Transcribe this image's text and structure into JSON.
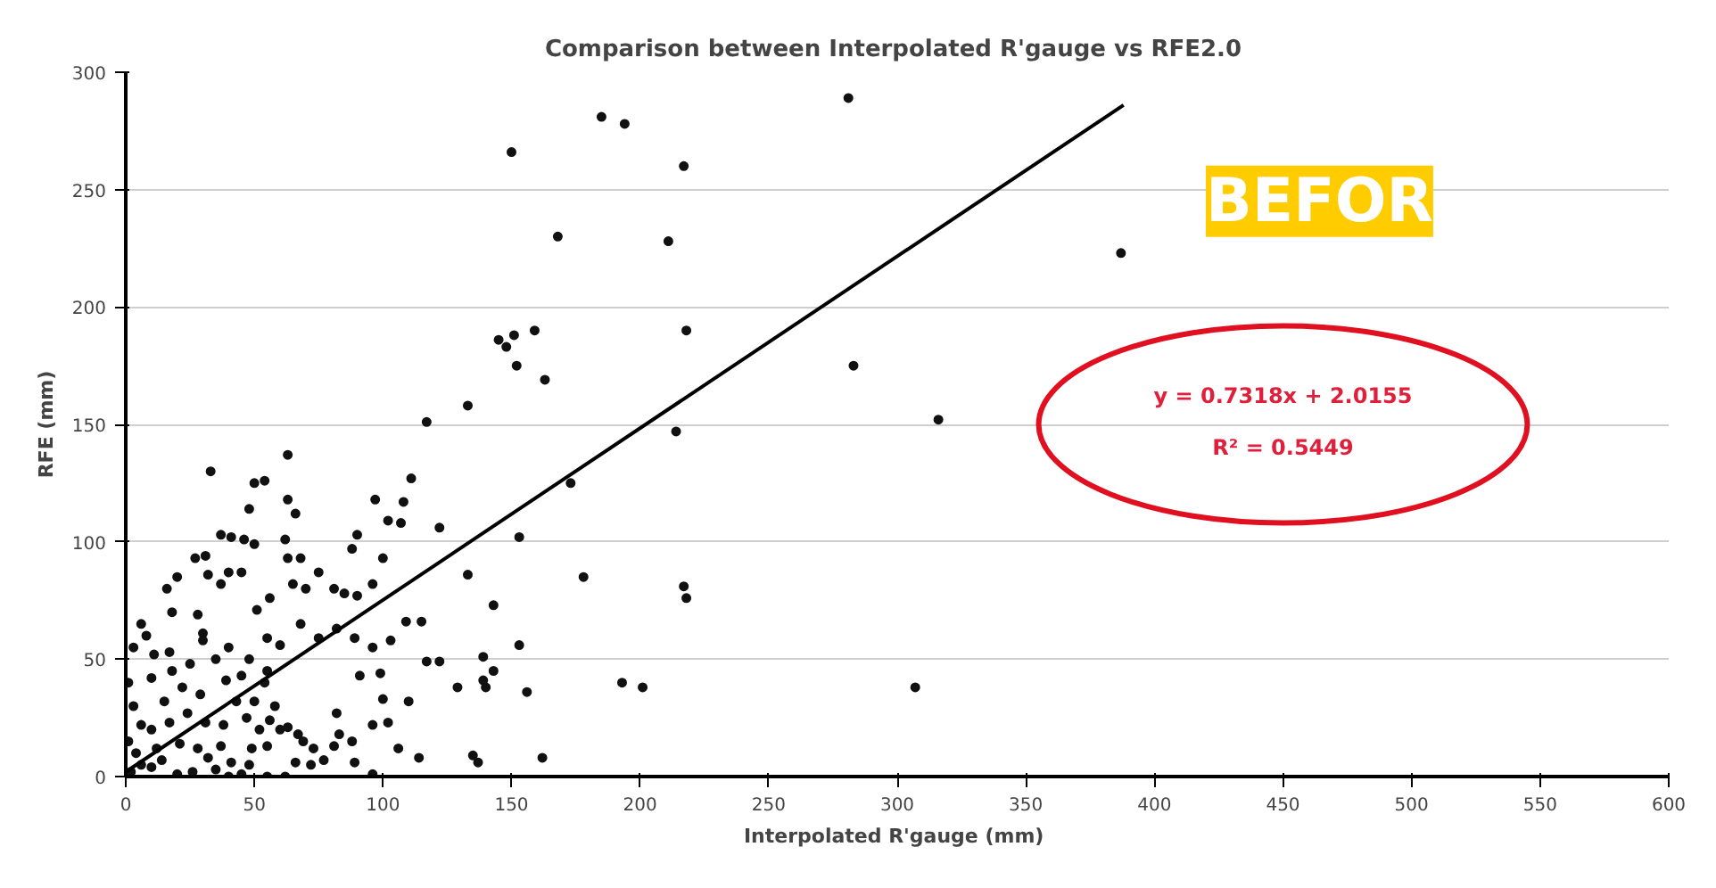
{
  "chart_data": {
    "type": "scatter",
    "title": "Comparison between Interpolated R'gauge  vs RFE2.0",
    "xlabel": "Interpolated  R'gauge (mm)",
    "ylabel": "RFE (mm)",
    "xlim": [
      0,
      600
    ],
    "ylim": [
      0,
      300
    ],
    "xticks": [
      0,
      50,
      100,
      150,
      200,
      250,
      300,
      350,
      400,
      450,
      500,
      550,
      600
    ],
    "yticks": [
      0,
      50,
      100,
      150,
      200,
      250,
      300
    ],
    "grid": "y",
    "marker": "circle",
    "annotations": [
      "BEFOR",
      "y = 0.7318x + 2.0155",
      "R² = 0.5449"
    ],
    "series": [
      {
        "color": "#111111",
        "x": [
          281,
          387,
          283,
          316,
          307,
          150,
          185,
          194,
          217,
          168,
          211,
          145,
          148,
          151,
          159,
          152,
          163,
          218,
          133,
          117,
          214,
          153,
          133,
          178,
          217,
          218,
          143,
          153,
          139,
          143,
          139,
          140,
          129,
          156,
          193,
          201,
          135,
          137,
          162,
          173,
          63,
          33,
          50,
          54,
          63,
          48,
          66,
          111,
          97,
          108,
          102,
          107,
          122,
          37,
          41,
          46,
          50,
          62,
          90,
          88,
          100,
          27,
          31,
          20,
          16,
          32,
          37,
          40,
          45,
          63,
          68,
          65,
          70,
          75,
          81,
          85,
          90,
          96,
          109,
          115,
          6,
          18,
          28,
          30,
          51,
          56,
          55,
          60,
          68,
          75,
          82,
          89,
          11,
          17,
          96,
          103,
          91,
          99,
          117,
          122,
          110,
          100,
          102,
          114,
          106,
          96,
          82,
          83,
          88,
          81,
          63,
          67,
          69,
          73,
          55,
          56,
          66,
          72,
          77,
          89,
          96,
          1,
          3,
          6,
          1,
          4,
          6,
          2,
          10,
          12,
          10,
          17,
          15,
          22,
          29,
          24,
          31,
          21,
          28,
          37,
          41,
          35,
          26,
          20,
          45,
          49,
          47,
          43,
          39,
          45,
          54,
          50,
          10,
          35,
          40,
          25,
          48,
          55,
          58,
          60,
          8,
          3,
          18,
          30,
          52,
          38,
          14,
          32,
          48,
          40,
          55,
          62
        ],
        "values": [
          289,
          223,
          175,
          152,
          38,
          266,
          281,
          278,
          260,
          230,
          228,
          186,
          183,
          188,
          190,
          175,
          169,
          190,
          158,
          151,
          147,
          102,
          86,
          85,
          81,
          76,
          73,
          56,
          51,
          45,
          41,
          38,
          38,
          36,
          40,
          38,
          9,
          6,
          8,
          125,
          137,
          130,
          125,
          126,
          118,
          114,
          112,
          127,
          118,
          117,
          109,
          108,
          106,
          103,
          102,
          101,
          99,
          101,
          103,
          97,
          93,
          93,
          94,
          85,
          80,
          86,
          82,
          87,
          87,
          93,
          93,
          82,
          80,
          87,
          80,
          78,
          77,
          82,
          66,
          66,
          65,
          70,
          69,
          61,
          71,
          76,
          59,
          56,
          65,
          59,
          63,
          59,
          52,
          53,
          55,
          58,
          43,
          44,
          49,
          49,
          32,
          33,
          23,
          8,
          12,
          22,
          27,
          18,
          15,
          13,
          21,
          18,
          15,
          12,
          13,
          24,
          6,
          5,
          7,
          6,
          1,
          40,
          30,
          22,
          15,
          10,
          5,
          2,
          4,
          12,
          20,
          23,
          32,
          38,
          35,
          27,
          23,
          14,
          12,
          13,
          6,
          3,
          2,
          1,
          1,
          12,
          25,
          32,
          41,
          43,
          40,
          32,
          42,
          50,
          55,
          48,
          50,
          45,
          30,
          20,
          60,
          55,
          45,
          58,
          20,
          22,
          7,
          8,
          5,
          0,
          0,
          0
        ]
      },
      {
        "type": "line",
        "color": "#000000",
        "marker": "none",
        "x": [
          0,
          388
        ],
        "values": [
          2,
          286
        ]
      }
    ]
  }
}
